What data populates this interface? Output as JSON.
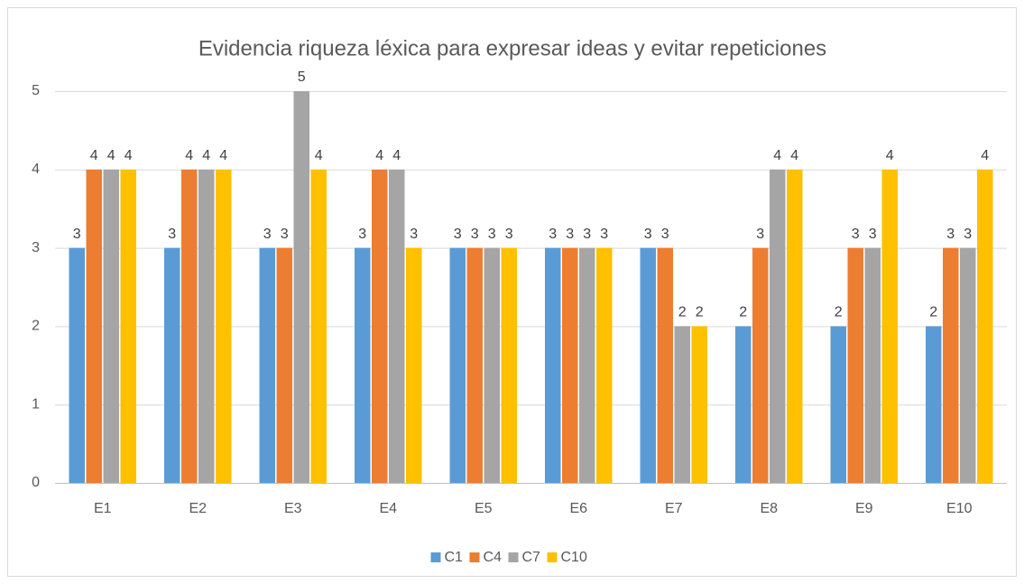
{
  "chart_data": {
    "type": "bar",
    "title": "Evidencia riqueza léxica para expresar ideas y evitar repeticiones",
    "categories": [
      "E1",
      "E2",
      "E3",
      "E4",
      "E5",
      "E6",
      "E7",
      "E8",
      "E9",
      "E10"
    ],
    "series": [
      {
        "name": "C1",
        "color": "#5b9bd5",
        "values": [
          3,
          3,
          3,
          3,
          3,
          3,
          3,
          2,
          2,
          2
        ]
      },
      {
        "name": "C4",
        "color": "#ed7d31",
        "values": [
          4,
          4,
          3,
          4,
          3,
          3,
          3,
          3,
          3,
          3
        ]
      },
      {
        "name": "C7",
        "color": "#a5a5a5",
        "values": [
          4,
          4,
          5,
          4,
          3,
          3,
          2,
          4,
          3,
          3
        ]
      },
      {
        "name": "C10",
        "color": "#ffc000",
        "values": [
          4,
          4,
          4,
          3,
          3,
          3,
          2,
          4,
          4,
          4
        ]
      }
    ],
    "ylim": [
      0,
      5
    ],
    "yticks": [
      0,
      1,
      2,
      3,
      4,
      5
    ],
    "grid": true,
    "legend": "bottom"
  }
}
